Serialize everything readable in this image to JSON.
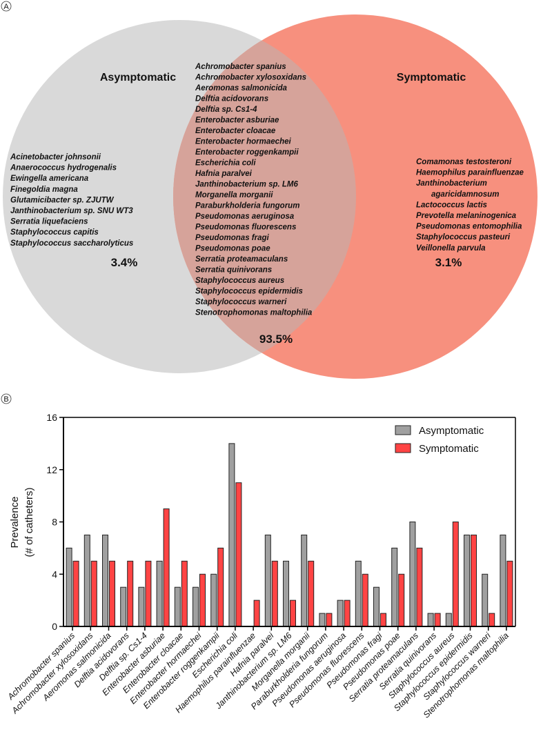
{
  "panels": {
    "a": "A",
    "b": "B"
  },
  "venn": {
    "colors": {
      "asymptomatic": "#d9d9d9",
      "symptomatic": "#f7907e",
      "overlap": "#d6a39a"
    },
    "left_title": "Asymptomatic",
    "right_title": "Symptomatic",
    "left_pct": "3.4%",
    "center_pct": "93.5%",
    "right_pct": "3.1%",
    "left_species": [
      "Acinetobacter johnsonii",
      "Anaerococcus hydrogenalis",
      "Ewingella americana",
      "Finegoldia magna",
      "Glutamicibacter sp. ZJUTW",
      "Janthinobacterium sp. SNU WT3",
      "Serratia liquefaciens",
      "Staphylococcus capitis",
      "Staphylococcus saccharolyticus"
    ],
    "center_species": [
      "Achromobacter spanius",
      "Achromobacter xylosoxidans",
      "Aeromonas salmonicida",
      "Delftia acidovorans",
      "Delftia sp. Cs1-4",
      "Enterobacter asburiae",
      "Enterobacter cloacae",
      "Enterobacter hormaechei",
      "Enterobacter roggenkampii",
      "Escherichia coli",
      "Hafnia paralvei",
      "Janthinobacterium sp. LM6",
      "Morganella morganii",
      "Paraburkholderia fungorum",
      "Pseudomonas aeruginosa",
      "Pseudomonas fluorescens",
      "Pseudomonas fragi",
      "Pseudomonas poae",
      "Serratia proteamaculans",
      "Serratia quinivorans",
      "Staphylococcus aureus",
      "Staphylococcus epidermidis",
      "Staphylococcus warneri",
      "Stenotrophomonas maltophilia"
    ],
    "right_species": [
      "Comamonas testosteroni",
      "Haemophilus parainfluenzae",
      "Janthinobacterium",
      "agaricidamnosum",
      "Lactococcus lactis",
      "Prevotella melaninogenica",
      "Pseudomonas entomophilia",
      "Staphylococcus pasteuri",
      "Veillonella parvula"
    ]
  },
  "chart_data": {
    "type": "bar",
    "ylabel": [
      "Prevalence",
      "(# of catheters)"
    ],
    "ylim": [
      0,
      16
    ],
    "yticks": [
      0,
      4,
      8,
      12,
      16
    ],
    "legend_position": "top-right",
    "categories": [
      "Achromobacter spanius",
      "Achromobacter xylosoxidans",
      "Aeromonas salmonicida",
      "Delftia acidovorans",
      "Delftia sp. Cs1-4",
      "Enterobacter asburiae",
      "Enterobacter cloacae",
      "Enterobacter hormaechei",
      "Enterobacter roggenkampii",
      "Escherichia coli",
      "Haemophilus parainfluenzae",
      "Hafnia paralvei",
      "Janthinobacterium sp. LM6",
      "Morganella morganii",
      "Paraburkholderia fungorum",
      "Pseudomonas aeruginosa",
      "Pseudomonas fluorescens",
      "Pseudomonas fragi",
      "Pseudomonas poae",
      "Serratia proteamaculans",
      "Serratia quinivorans",
      "Staphylococcus aureus",
      "Staphylococcus epidermidis",
      "Staphylococcus warneri",
      "Stenotrophomonas maltophilia"
    ],
    "series": [
      {
        "name": "Asymptomatic",
        "color": "#a0a0a0",
        "values": [
          6,
          7,
          7,
          3,
          3,
          5,
          3,
          3,
          4,
          14,
          0,
          7,
          5,
          7,
          1,
          2,
          5,
          3,
          6,
          8,
          1,
          1,
          7,
          4,
          7
        ]
      },
      {
        "name": "Symptomatic",
        "color": "#ff4444",
        "values": [
          5,
          5,
          5,
          5,
          5,
          9,
          5,
          4,
          6,
          11,
          2,
          5,
          2,
          5,
          1,
          2,
          4,
          1,
          4,
          6,
          1,
          8,
          7,
          1,
          5
        ]
      }
    ]
  }
}
